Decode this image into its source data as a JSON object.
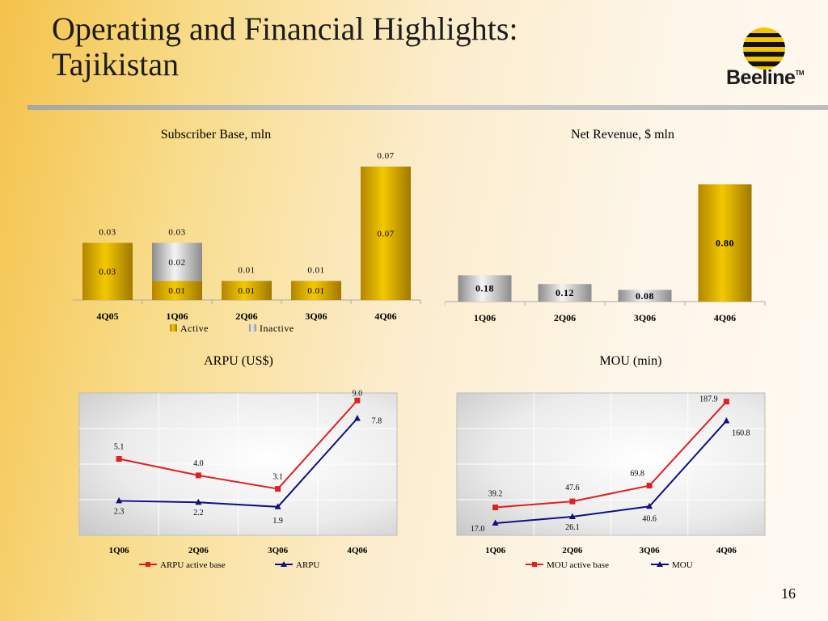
{
  "slide": {
    "title_line1": "Operating and Financial Highlights:",
    "title_line2": "Tajikistan",
    "page_number": "16",
    "logo_text": "Beeline",
    "logo_tm": "TM"
  },
  "chart_data": [
    {
      "id": "subscriber",
      "type": "bar",
      "stacked": true,
      "title": "Subscriber Base, mln",
      "categories": [
        "4Q05",
        "1Q06",
        "2Q06",
        "3Q06",
        "4Q06"
      ],
      "series": [
        {
          "name": "Active",
          "values": [
            0.03,
            0.01,
            0.01,
            0.01,
            0.07
          ],
          "color": "#d9ac00"
        },
        {
          "name": "Inactive",
          "values": [
            0,
            0.02,
            0,
            0,
            0
          ],
          "color": "#b8b8b8"
        }
      ],
      "segment_labels": [
        [
          "0.03",
          "0.01",
          "0.01",
          "0.01",
          "0.07"
        ],
        [
          "",
          "0.02",
          "",
          "",
          ""
        ]
      ],
      "total_labels": [
        "0.03",
        "0.03",
        "0.01",
        "0.01",
        "0.07"
      ],
      "ylim": [
        0,
        0.07
      ],
      "legend_position": "bottom"
    },
    {
      "id": "revenue",
      "type": "bar",
      "title": "Net Revenue, $ mln",
      "categories": [
        "1Q06",
        "2Q06",
        "3Q06",
        "4Q06"
      ],
      "values": [
        0.18,
        0.12,
        0.08,
        0.8
      ],
      "labels": [
        "0.18",
        "0.12",
        "0.08",
        "0.80"
      ],
      "colors": [
        "#b8b8b8",
        "#b8b8b8",
        "#b8b8b8",
        "#d9ac00"
      ],
      "ylim": [
        0,
        0.8
      ]
    },
    {
      "id": "arpu",
      "type": "line",
      "title": "ARPU (US$)",
      "categories": [
        "1Q06",
        "2Q06",
        "3Q06",
        "4Q06"
      ],
      "series": [
        {
          "name": "ARPU active base",
          "values": [
            5.1,
            4.0,
            3.1,
            9.0
          ],
          "labels": [
            "5.1",
            "4.0",
            "3.1",
            "9.0"
          ],
          "color": "#e02020",
          "marker": "square"
        },
        {
          "name": "ARPU",
          "values": [
            2.3,
            2.2,
            1.9,
            7.8
          ],
          "labels": [
            "2.3",
            "2.2",
            "1.9",
            "7.8"
          ],
          "color": "#101080",
          "marker": "triangle"
        }
      ],
      "ylim": [
        0,
        9.5
      ],
      "grid": true,
      "legend_position": "bottom"
    },
    {
      "id": "mou",
      "type": "line",
      "title": "MOU (min)",
      "categories": [
        "1Q06",
        "2Q06",
        "3Q06",
        "4Q06"
      ],
      "series": [
        {
          "name": "MOU active base",
          "values": [
            39.2,
            47.6,
            69.8,
            187.9
          ],
          "labels": [
            "39.2",
            "47.6",
            "69.8",
            "187.9"
          ],
          "color": "#e02020",
          "marker": "square"
        },
        {
          "name": "MOU",
          "values": [
            17.0,
            26.1,
            40.6,
            160.8
          ],
          "labels": [
            "17.0",
            "26.1",
            "40.6",
            "160.8"
          ],
          "color": "#101080",
          "marker": "triangle"
        }
      ],
      "ylim": [
        0,
        200
      ],
      "grid": true,
      "legend_position": "bottom"
    }
  ]
}
